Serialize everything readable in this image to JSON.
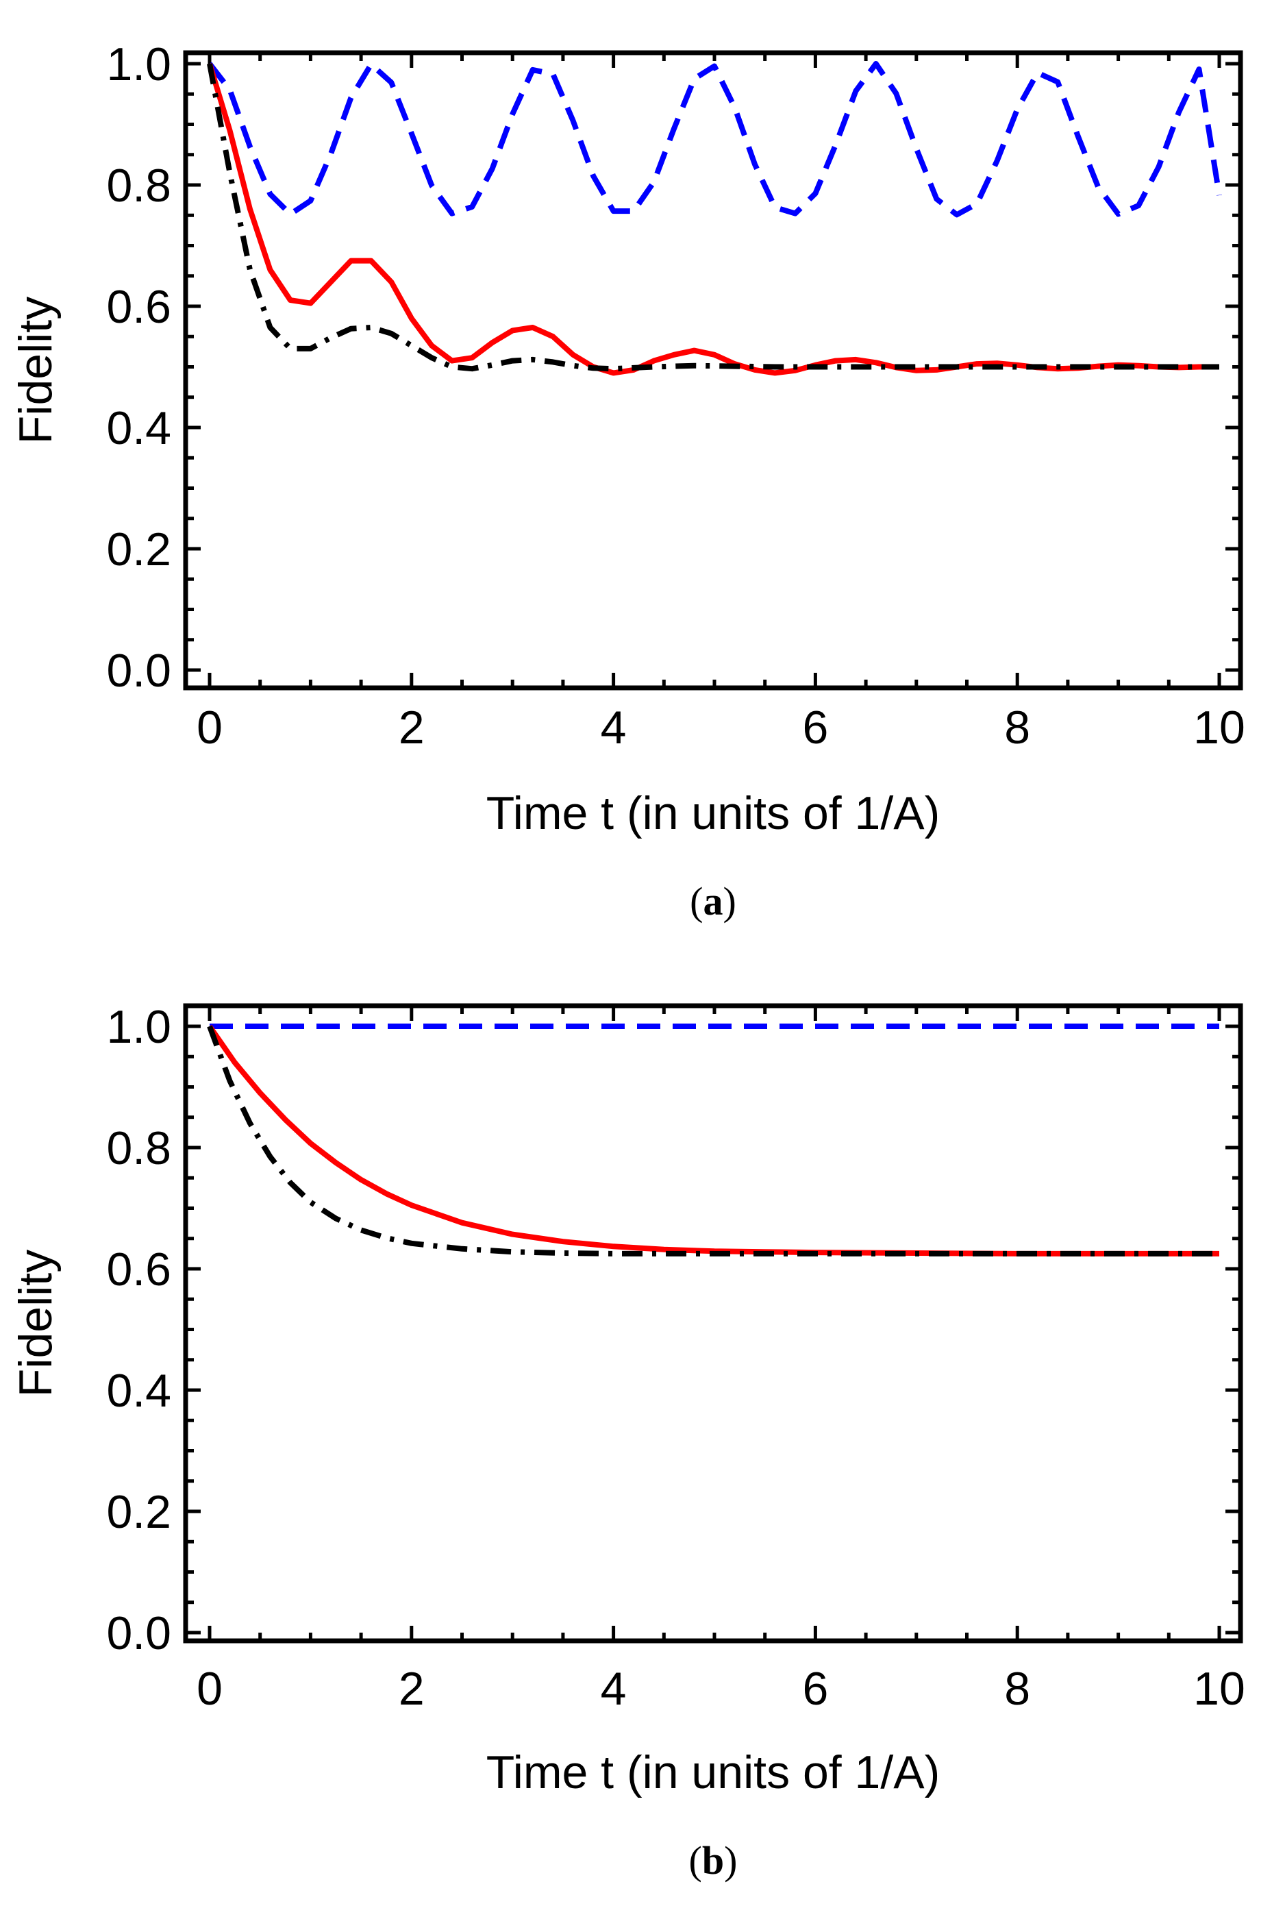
{
  "chart_data": [
    {
      "id": "a",
      "type": "line",
      "caption_open": "(",
      "caption_letter": "a",
      "caption_close": ")",
      "xlabel": "Time t (in units of 1/A)",
      "ylabel": "Fidelity",
      "xlim": [
        0,
        10
      ],
      "ylim": [
        0,
        1.0
      ],
      "xticks": [
        0,
        2,
        4,
        6,
        8,
        10
      ],
      "xtick_labels": [
        "0",
        "2",
        "4",
        "6",
        "8",
        "10"
      ],
      "yticks": [
        0.0,
        0.2,
        0.4,
        0.6,
        0.8,
        1.0
      ],
      "ytick_labels": [
        "0.0",
        "0.2",
        "0.4",
        "0.6",
        "0.8",
        "1.0"
      ],
      "series": [
        {
          "name": "blue-dashed",
          "color": "#0000ff",
          "style": "dashed",
          "x": [
            0,
            0.2,
            0.4,
            0.6,
            0.8,
            1.0,
            1.2,
            1.4,
            1.6,
            1.8,
            2.0,
            2.2,
            2.4,
            2.6,
            2.8,
            3.0,
            3.2,
            3.4,
            3.6,
            3.8,
            4.0,
            4.2,
            4.4,
            4.6,
            4.8,
            5.0,
            5.2,
            5.4,
            5.6,
            5.8,
            6.0,
            6.2,
            6.4,
            6.6,
            6.8,
            7.0,
            7.2,
            7.4,
            7.6,
            7.8,
            8.0,
            8.2,
            8.4,
            8.6,
            8.8,
            9.0,
            9.2,
            9.4,
            9.6,
            9.8,
            10.0
          ],
          "values": [
            1.0,
            0.957,
            0.863,
            0.785,
            0.752,
            0.774,
            0.851,
            0.944,
            0.999,
            0.969,
            0.885,
            0.799,
            0.753,
            0.764,
            0.827,
            0.917,
            0.99,
            0.983,
            0.906,
            0.815,
            0.757,
            0.757,
            0.805,
            0.893,
            0.975,
            0.996,
            0.928,
            0.834,
            0.763,
            0.753,
            0.786,
            0.866,
            0.955,
            1.0,
            0.951,
            0.86,
            0.777,
            0.751,
            0.769,
            0.84,
            0.925,
            0.985,
            0.97,
            0.881,
            0.797,
            0.752,
            0.766,
            0.83,
            0.92,
            0.991,
            0.783
          ]
        },
        {
          "name": "red-solid",
          "color": "#ff0000",
          "style": "solid",
          "x": [
            0,
            0.2,
            0.4,
            0.6,
            0.8,
            1.0,
            1.2,
            1.4,
            1.6,
            1.8,
            2.0,
            2.2,
            2.4,
            2.6,
            2.8,
            3.0,
            3.2,
            3.4,
            3.6,
            3.8,
            4.0,
            4.2,
            4.4,
            4.6,
            4.8,
            5.0,
            5.2,
            5.4,
            5.6,
            5.8,
            6.0,
            6.2,
            6.4,
            6.6,
            6.8,
            7.0,
            7.2,
            7.4,
            7.6,
            7.8,
            8.0,
            8.2,
            8.4,
            8.6,
            8.8,
            9.0,
            9.2,
            9.4,
            9.6,
            9.8,
            10.0
          ],
          "values": [
            1.0,
            0.89,
            0.76,
            0.66,
            0.61,
            0.605,
            0.64,
            0.675,
            0.675,
            0.64,
            0.58,
            0.535,
            0.51,
            0.515,
            0.54,
            0.56,
            0.565,
            0.55,
            0.52,
            0.5,
            0.49,
            0.495,
            0.51,
            0.52,
            0.527,
            0.52,
            0.505,
            0.495,
            0.49,
            0.494,
            0.503,
            0.51,
            0.512,
            0.507,
            0.499,
            0.494,
            0.495,
            0.5,
            0.505,
            0.506,
            0.503,
            0.499,
            0.497,
            0.498,
            0.501,
            0.503,
            0.502,
            0.5,
            0.499,
            0.5,
            0.5
          ]
        },
        {
          "name": "black-dashdot",
          "color": "#000000",
          "style": "dashdot",
          "x": [
            0,
            0.2,
            0.4,
            0.6,
            0.8,
            1.0,
            1.2,
            1.4,
            1.6,
            1.8,
            2.0,
            2.2,
            2.4,
            2.6,
            2.8,
            3.0,
            3.2,
            3.4,
            3.6,
            3.8,
            4.0,
            4.4,
            4.8,
            5.2,
            5.6,
            6.0,
            6.4,
            6.8,
            7.2,
            7.6,
            8.0,
            8.4,
            8.8,
            9.2,
            9.6,
            10.0
          ],
          "values": [
            1.0,
            0.82,
            0.66,
            0.565,
            0.53,
            0.53,
            0.548,
            0.563,
            0.565,
            0.555,
            0.535,
            0.515,
            0.5,
            0.497,
            0.503,
            0.51,
            0.512,
            0.508,
            0.502,
            0.498,
            0.497,
            0.5,
            0.502,
            0.501,
            0.5,
            0.5,
            0.5,
            0.5,
            0.5,
            0.5,
            0.5,
            0.5,
            0.5,
            0.5,
            0.5,
            0.5
          ]
        }
      ]
    },
    {
      "id": "b",
      "type": "line",
      "caption_open": "(",
      "caption_letter": "b",
      "caption_close": ")",
      "xlabel": "Time t (in units of 1/A)",
      "ylabel": "Fidelity",
      "xlim": [
        0,
        10
      ],
      "ylim": [
        0,
        1.0
      ],
      "xticks": [
        0,
        2,
        4,
        6,
        8,
        10
      ],
      "xtick_labels": [
        "0",
        "2",
        "4",
        "6",
        "8",
        "10"
      ],
      "yticks": [
        0.0,
        0.2,
        0.4,
        0.6,
        0.8,
        1.0
      ],
      "ytick_labels": [
        "0.0",
        "0.2",
        "0.4",
        "0.6",
        "0.8",
        "1.0"
      ],
      "series": [
        {
          "name": "blue-dashed",
          "color": "#0000ff",
          "style": "dashed",
          "x": [
            0,
            10
          ],
          "values": [
            1.0,
            1.0
          ]
        },
        {
          "name": "red-solid",
          "color": "#ff0000",
          "style": "solid",
          "x": [
            0,
            0.25,
            0.5,
            0.75,
            1.0,
            1.25,
            1.5,
            1.75,
            2.0,
            2.5,
            3.0,
            3.5,
            4.0,
            4.5,
            5.0,
            5.5,
            6.0,
            7.0,
            8.0,
            9.0,
            10.0
          ],
          "values": [
            1.0,
            0.94,
            0.89,
            0.846,
            0.807,
            0.775,
            0.747,
            0.724,
            0.705,
            0.676,
            0.657,
            0.645,
            0.637,
            0.632,
            0.629,
            0.628,
            0.627,
            0.626,
            0.625,
            0.625,
            0.625
          ]
        },
        {
          "name": "black-dashdot",
          "color": "#000000",
          "style": "dashdot",
          "x": [
            0,
            0.2,
            0.4,
            0.6,
            0.8,
            1.0,
            1.25,
            1.5,
            1.75,
            2.0,
            2.5,
            3.0,
            3.5,
            4.0,
            5.0,
            6.0,
            7.0,
            8.0,
            9.0,
            10.0
          ],
          "values": [
            1.0,
            0.91,
            0.84,
            0.785,
            0.742,
            0.71,
            0.683,
            0.664,
            0.651,
            0.642,
            0.633,
            0.628,
            0.626,
            0.625,
            0.625,
            0.625,
            0.625,
            0.625,
            0.625,
            0.625
          ]
        }
      ]
    }
  ]
}
